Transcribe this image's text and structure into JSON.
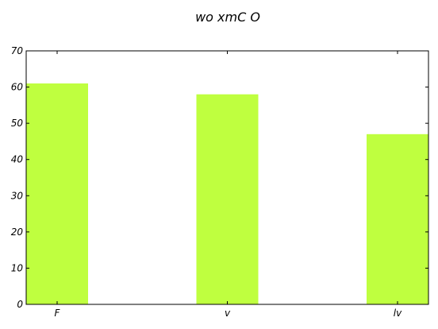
{
  "chart_data": {
    "type": "bar",
    "title": "wo xmC O",
    "xlabel": "",
    "ylabel": "",
    "categories": [
      "F",
      "v",
      "lv"
    ],
    "values": [
      61,
      58,
      47
    ],
    "ylim": [
      0,
      70
    ],
    "yticks": [
      0,
      10,
      20,
      30,
      40,
      50,
      60,
      70
    ],
    "grid": false,
    "legend": "none",
    "colors": {
      "bar": "#bfff3f",
      "axis": "#000000",
      "background": "#ffffff"
    }
  }
}
